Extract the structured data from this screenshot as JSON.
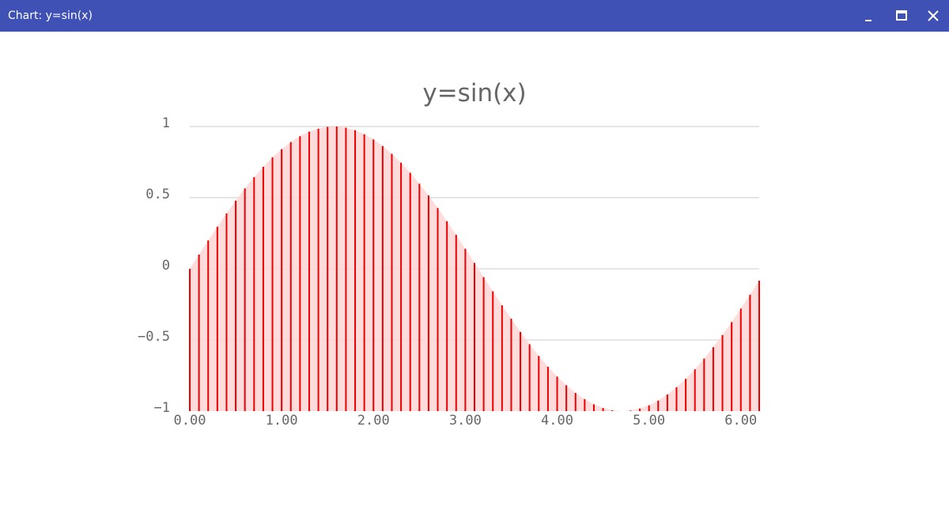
{
  "window": {
    "title": "Chart: y=sin(x)",
    "minimize_icon": "minimize-icon",
    "maximize_icon": "maximize-icon",
    "close_icon": "close-icon",
    "titlebar_color": "#3f51b5"
  },
  "chart_data": {
    "type": "bar",
    "style": "stem",
    "title": "y=sin(x)",
    "xlabel": "",
    "ylabel": "",
    "xlim": [
      0,
      6.2
    ],
    "ylim": [
      -1,
      1
    ],
    "x_tick_values": [
      0,
      1,
      2,
      3,
      4,
      5,
      6
    ],
    "x_tick_labels": [
      "0.00",
      "1.00",
      "2.00",
      "3.00",
      "4.00",
      "5.00",
      "6.00"
    ],
    "y_tick_values": [
      1,
      0.5,
      0,
      -0.5,
      -1
    ],
    "y_tick_labels": [
      "1",
      "0.5",
      "0",
      "−0.5",
      "−1"
    ],
    "grid": true,
    "series": [
      {
        "color": "#ee0000",
        "fill_color": "#ffd6d6",
        "x": [
          0,
          0.1,
          0.2,
          0.3,
          0.4,
          0.5,
          0.6,
          0.7,
          0.8,
          0.9,
          1,
          1.1,
          1.2,
          1.3,
          1.4,
          1.5,
          1.6,
          1.7,
          1.8,
          1.9,
          2,
          2.1,
          2.2,
          2.3,
          2.4,
          2.5,
          2.6,
          2.7,
          2.8,
          2.9,
          3,
          3.1,
          3.2,
          3.3,
          3.4,
          3.5,
          3.6,
          3.7,
          3.8,
          3.9,
          4,
          4.1,
          4.2,
          4.3,
          4.4,
          4.5,
          4.6,
          4.7,
          4.8,
          4.9,
          5,
          5.1,
          5.2,
          5.3,
          5.4,
          5.5,
          5.6,
          5.7,
          5.8,
          5.9,
          6,
          6.1,
          6.2
        ],
        "values": [
          0,
          0.1,
          0.199,
          0.296,
          0.389,
          0.479,
          0.565,
          0.644,
          0.717,
          0.783,
          0.841,
          0.891,
          0.932,
          0.964,
          0.985,
          0.997,
          1,
          0.992,
          0.974,
          0.946,
          0.909,
          0.863,
          0.808,
          0.746,
          0.675,
          0.598,
          0.516,
          0.427,
          0.335,
          0.239,
          0.141,
          0.042,
          -0.058,
          -0.158,
          -0.256,
          -0.351,
          -0.443,
          -0.53,
          -0.612,
          -0.688,
          -0.757,
          -0.818,
          -0.872,
          -0.916,
          -0.952,
          -0.978,
          -0.994,
          -1,
          -0.996,
          -0.982,
          -0.959,
          -0.926,
          -0.883,
          -0.832,
          -0.773,
          -0.706,
          -0.631,
          -0.551,
          -0.465,
          -0.374,
          -0.279,
          -0.182,
          -0.083
        ]
      }
    ]
  }
}
